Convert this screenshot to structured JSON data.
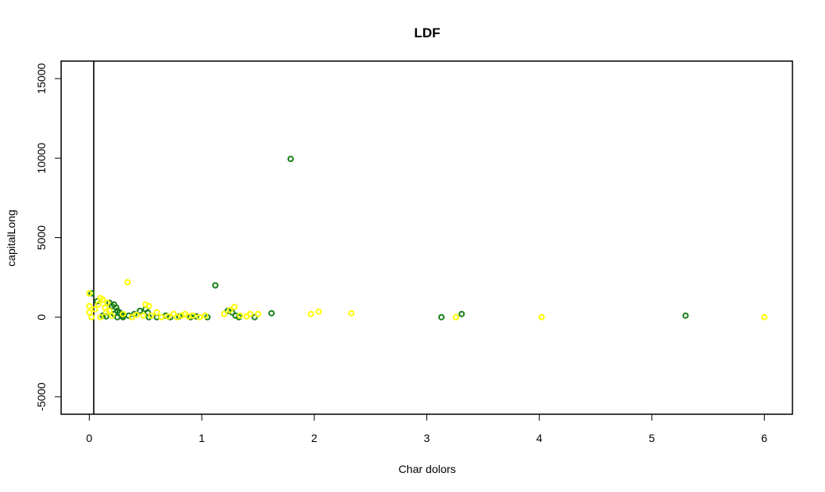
{
  "chart_data": {
    "type": "scatter",
    "title": "LDF",
    "xlabel": "Char dolors",
    "ylabel": "capitalLong",
    "xlim": [
      -0.25,
      6.25
    ],
    "ylim": [
      -6100,
      16100
    ],
    "x_ticks": [
      0,
      1,
      2,
      3,
      4,
      5,
      6
    ],
    "y_ticks": [
      -5000,
      0,
      5000,
      10000,
      15000
    ],
    "grid": false,
    "vertical_line_x": 0.04,
    "series": [
      {
        "color": "#1a7f1a",
        "points": [
          [
            0.02,
            1500
          ],
          [
            0.07,
            1000
          ],
          [
            0.18,
            900
          ],
          [
            0.2,
            700
          ],
          [
            0.22,
            800
          ],
          [
            0.24,
            600
          ],
          [
            0.25,
            400
          ],
          [
            0.27,
            300
          ],
          [
            0.28,
            200
          ],
          [
            0.3,
            100
          ],
          [
            0.15,
            50
          ],
          [
            0.12,
            100
          ],
          [
            0.22,
            200
          ],
          [
            0.25,
            0
          ],
          [
            0.3,
            0
          ],
          [
            0.4,
            200
          ],
          [
            0.45,
            400
          ],
          [
            0.5,
            500
          ],
          [
            0.52,
            300
          ],
          [
            0.53,
            0
          ],
          [
            0.35,
            100
          ],
          [
            0.6,
            0
          ],
          [
            0.68,
            100
          ],
          [
            0.72,
            0
          ],
          [
            0.8,
            50
          ],
          [
            0.9,
            0
          ],
          [
            0.95,
            50
          ],
          [
            1.05,
            0
          ],
          [
            1.12,
            2000
          ],
          [
            1.23,
            400
          ],
          [
            1.27,
            300
          ],
          [
            1.3,
            100
          ],
          [
            1.33,
            0
          ],
          [
            1.47,
            0
          ],
          [
            1.62,
            250
          ],
          [
            1.79,
            9950
          ],
          [
            3.13,
            0
          ],
          [
            3.31,
            200
          ],
          [
            5.3,
            100
          ]
        ]
      },
      {
        "color": "#ffff00",
        "points": [
          [
            0.0,
            1500
          ],
          [
            0.0,
            700
          ],
          [
            0.0,
            300
          ],
          [
            0.02,
            0
          ],
          [
            0.05,
            500
          ],
          [
            0.08,
            800
          ],
          [
            0.1,
            1200
          ],
          [
            0.12,
            1100
          ],
          [
            0.14,
            600
          ],
          [
            0.15,
            300
          ],
          [
            0.16,
            900
          ],
          [
            0.18,
            400
          ],
          [
            0.2,
            100
          ],
          [
            0.1,
            0
          ],
          [
            0.3,
            200
          ],
          [
            0.34,
            2200
          ],
          [
            0.38,
            0
          ],
          [
            0.42,
            150
          ],
          [
            0.48,
            100
          ],
          [
            0.5,
            800
          ],
          [
            0.53,
            700
          ],
          [
            0.55,
            100
          ],
          [
            0.6,
            300
          ],
          [
            0.64,
            0
          ],
          [
            0.7,
            50
          ],
          [
            0.75,
            200
          ],
          [
            0.78,
            0
          ],
          [
            0.82,
            100
          ],
          [
            0.85,
            200
          ],
          [
            0.88,
            50
          ],
          [
            0.92,
            100
          ],
          [
            0.98,
            0
          ],
          [
            1.03,
            100
          ],
          [
            1.2,
            200
          ],
          [
            1.25,
            450
          ],
          [
            1.29,
            650
          ],
          [
            1.34,
            100
          ],
          [
            1.4,
            50
          ],
          [
            1.43,
            200
          ],
          [
            1.5,
            200
          ],
          [
            1.97,
            200
          ],
          [
            2.04,
            350
          ],
          [
            2.33,
            250
          ],
          [
            3.26,
            0
          ],
          [
            4.02,
            0
          ],
          [
            6.0,
            0
          ]
        ]
      }
    ]
  }
}
